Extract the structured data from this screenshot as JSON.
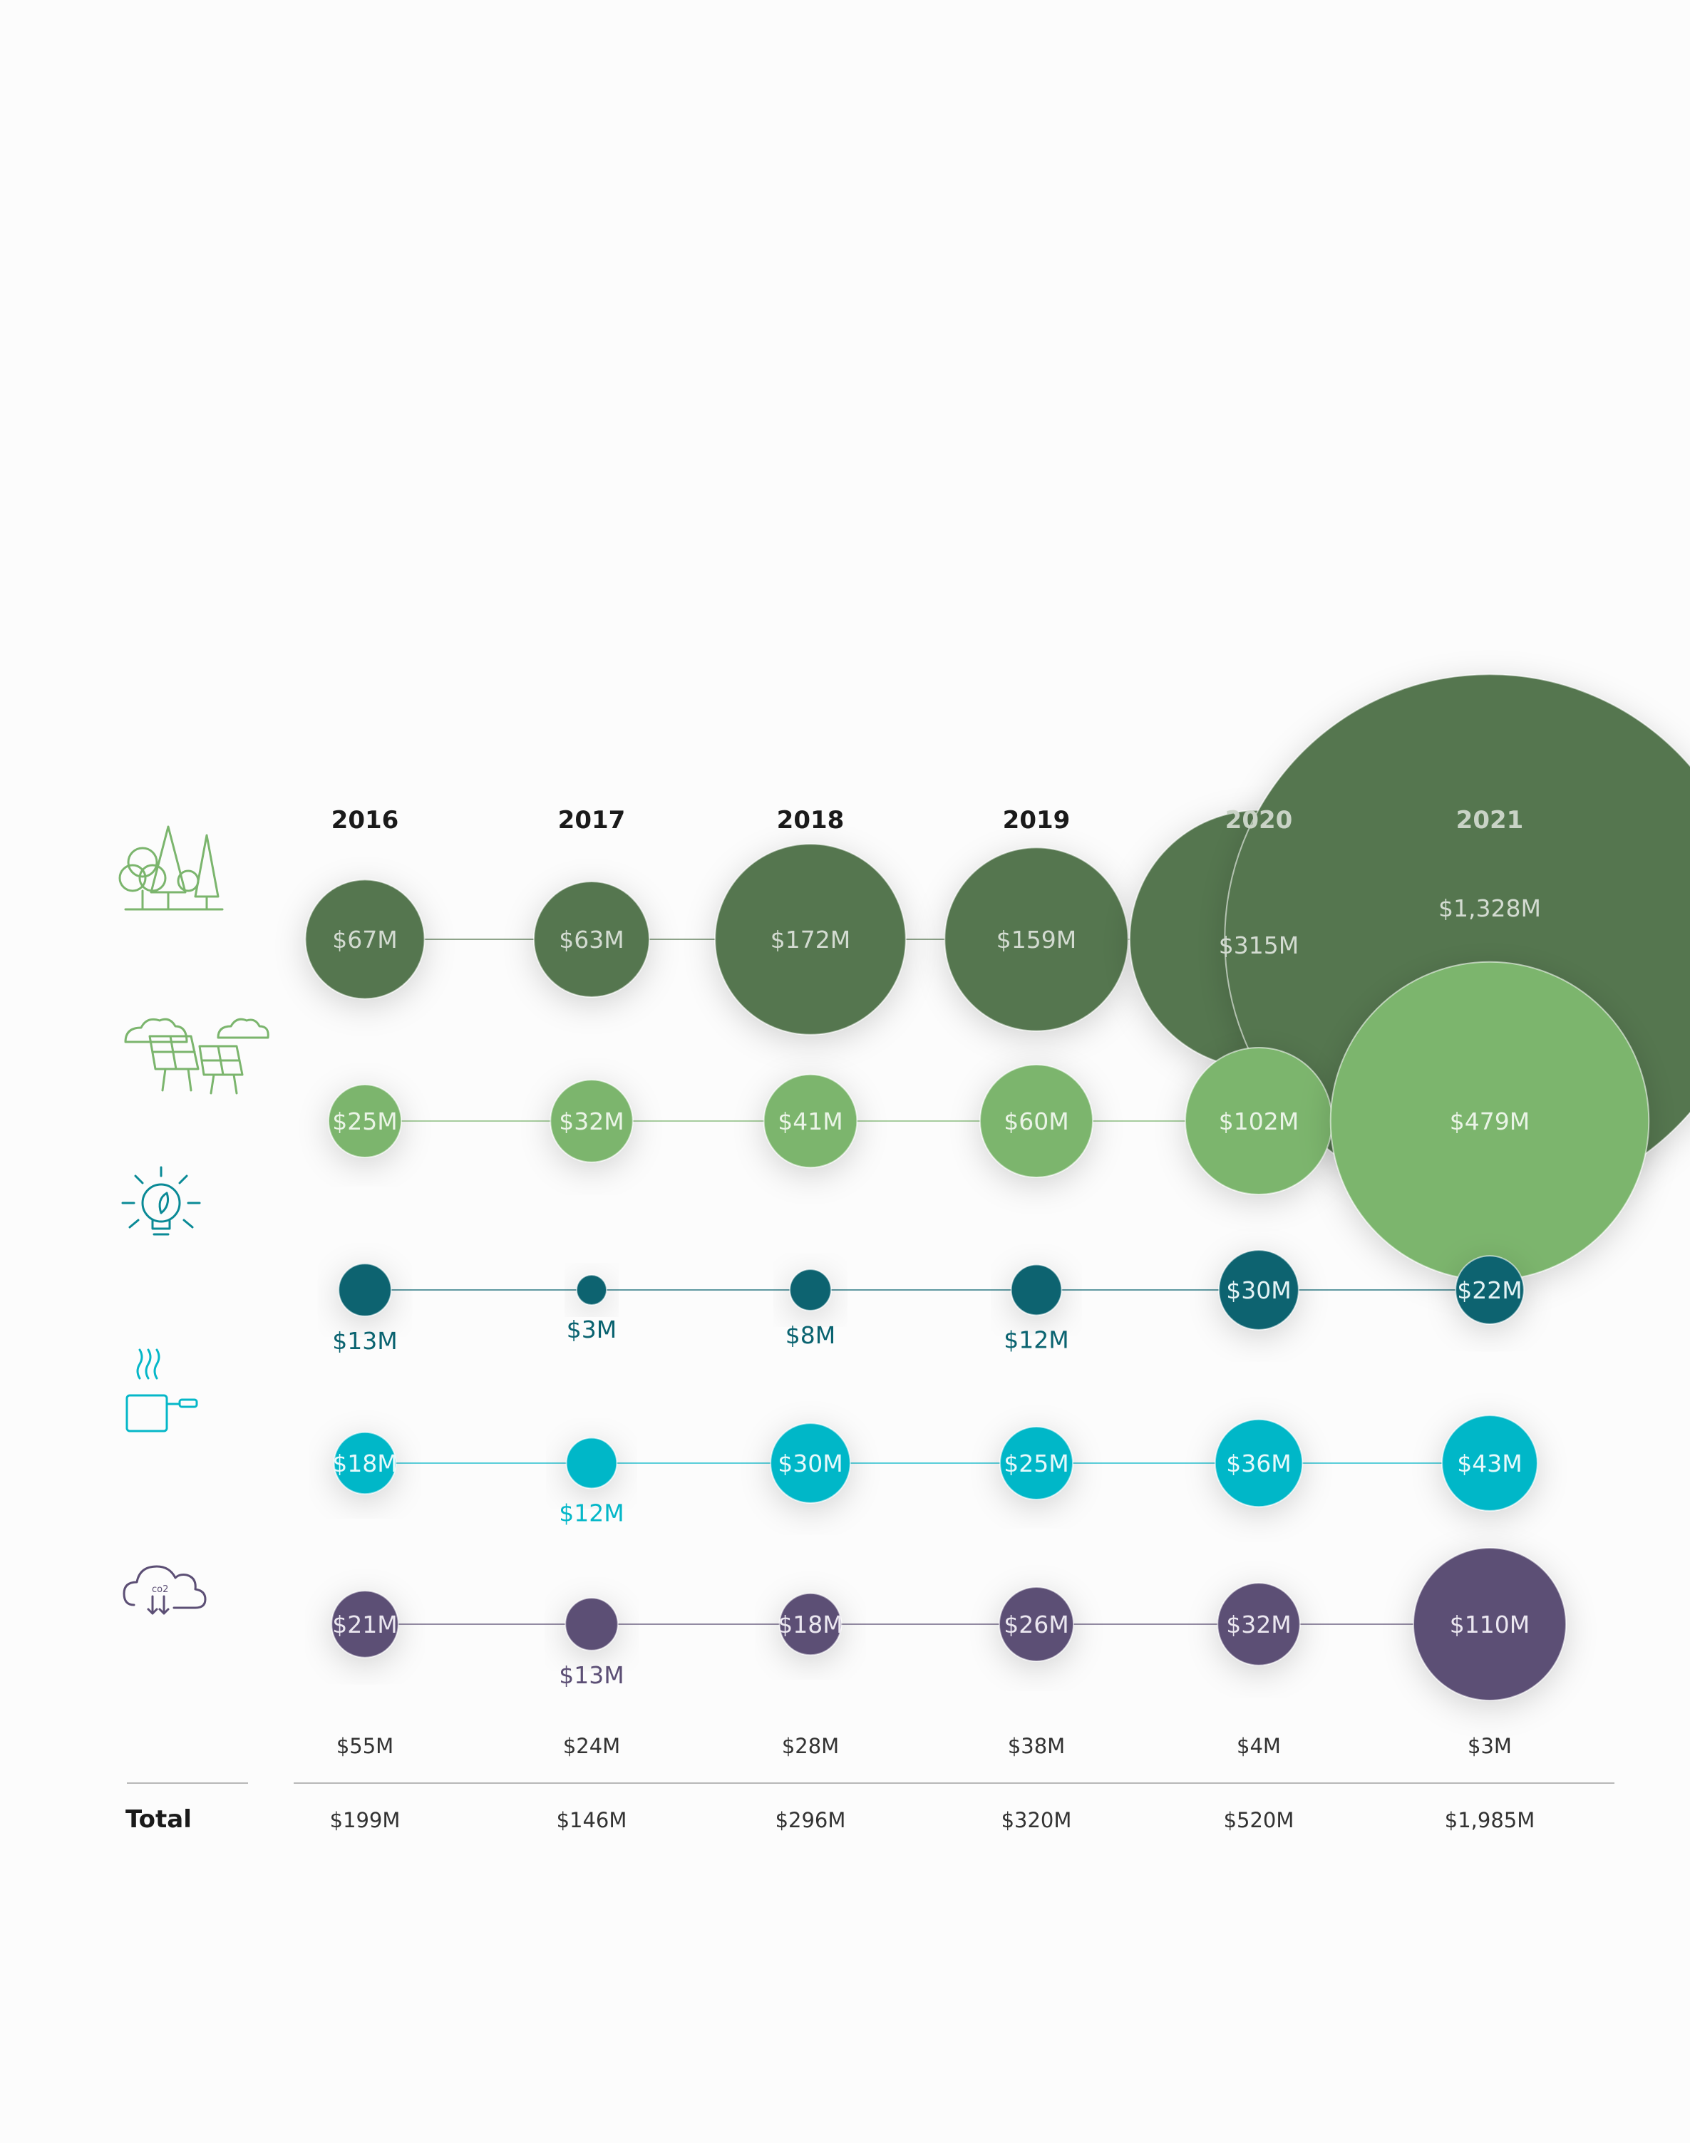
{
  "chart_data": {
    "type": "bubble",
    "title": "",
    "xlabel": "",
    "ylabel": "",
    "years": [
      "2016",
      "2017",
      "2018",
      "2019",
      "2020",
      "2021"
    ],
    "series": [
      {
        "icon": "forest-trees-icon",
        "color": "#55764f",
        "label_color": "#d3dbd1",
        "values": [
          67,
          63,
          172,
          159,
          315,
          1328
        ],
        "labels": [
          "$67M",
          "$63M",
          "$172M",
          "$159M",
          "$315M",
          "$1,328M"
        ]
      },
      {
        "icon": "solar-panels-icon",
        "color": "#7bb56d",
        "label_color": "#eaf4e6",
        "values": [
          25,
          32,
          41,
          60,
          102,
          479
        ],
        "labels": [
          "$25M",
          "$32M",
          "$41M",
          "$60M",
          "$102M",
          "$479M"
        ]
      },
      {
        "icon": "lightbulb-leaf-icon",
        "color": "#0a6370",
        "label_color": "#e4f3f5",
        "values": [
          13,
          3,
          8,
          12,
          30,
          22
        ],
        "labels": [
          "$13M",
          "$3M",
          "$8M",
          "$12M",
          "$30M",
          "$22M"
        ]
      },
      {
        "icon": "cooking-pot-icon",
        "color": "#05b7c8",
        "label_color": "#e6f9fb",
        "values": [
          18,
          12,
          30,
          25,
          36,
          43
        ],
        "labels": [
          "$18M",
          "$12M",
          "$30M",
          "$25M",
          "$36M",
          "$43M"
        ]
      },
      {
        "icon": "cloud-co2-icon",
        "color": "#5c4f75",
        "label_color": "#ebe7f0",
        "values": [
          21,
          13,
          18,
          26,
          32,
          110
        ],
        "labels": [
          "$21M",
          "$13M",
          "$18M",
          "$26M",
          "$32M",
          "$110M"
        ]
      }
    ],
    "other_row": {
      "values": [
        55,
        24,
        28,
        38,
        4,
        3
      ],
      "labels": [
        "$55M",
        "$24M",
        "$28M",
        "$38M",
        "$4M",
        "$3M"
      ]
    },
    "totals": {
      "label": "Total",
      "values": [
        199,
        146,
        296,
        320,
        520,
        1985
      ],
      "labels": [
        "$199M",
        "$146M",
        "$296M",
        "$320M",
        "$520M",
        "$1,985M"
      ]
    },
    "grid": false,
    "legend": "none"
  }
}
